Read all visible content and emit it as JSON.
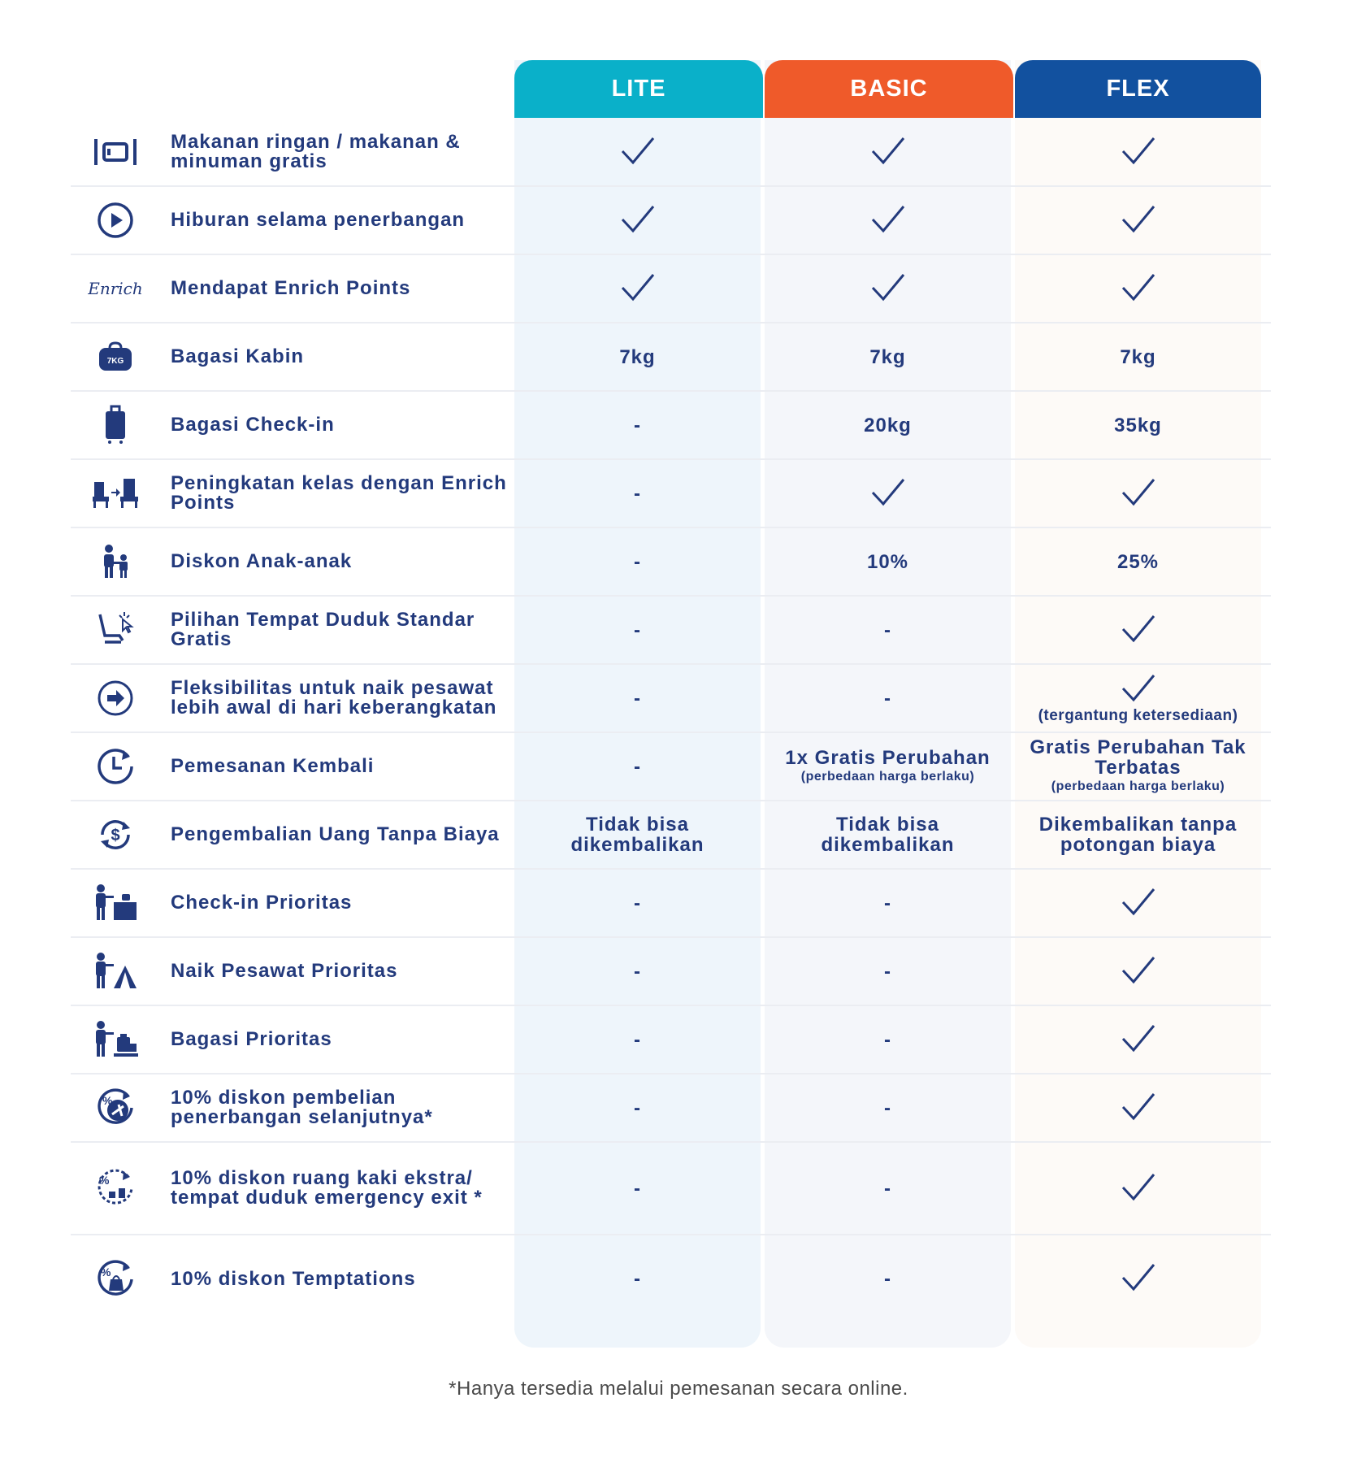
{
  "colors": {
    "lite": "#0ab0c9",
    "basic": "#ef5a2a",
    "flex": "#12519f",
    "text": "#233a7c",
    "lite_bg": "#eef5fb",
    "basic_bg": "#f4f6fa",
    "flex_bg": "#fdfaf7"
  },
  "plans": [
    {
      "label": "LITE",
      "accent": "#0ab0c9"
    },
    {
      "label": "BASIC",
      "accent": "#ef5a2a"
    },
    {
      "label": "FLEX",
      "accent": "#12519f"
    }
  ],
  "rows": [
    {
      "icon": "meal-icon",
      "label": "Makanan ringan / makanan & minuman gratis",
      "cells": [
        {
          "check": true
        },
        {
          "check": true
        },
        {
          "check": true
        }
      ]
    },
    {
      "icon": "play-icon",
      "label": "Hiburan selama penerbangan",
      "cells": [
        {
          "check": true
        },
        {
          "check": true
        },
        {
          "check": true
        }
      ]
    },
    {
      "icon": "enrich-logo-icon",
      "icon_text": "Enrich",
      "label": "Mendapat Enrich Points",
      "cells": [
        {
          "check": true
        },
        {
          "check": true
        },
        {
          "check": true
        }
      ]
    },
    {
      "icon": "cabin-bag-icon",
      "icon_text": "7KG",
      "label": "Bagasi Kabin",
      "cells": [
        {
          "text": "7kg"
        },
        {
          "text": "7kg"
        },
        {
          "text": "7kg"
        }
      ]
    },
    {
      "icon": "suitcase-icon",
      "label": "Bagasi Check-in",
      "cells": [
        {
          "text": "-"
        },
        {
          "text": "20kg"
        },
        {
          "text": "35kg"
        }
      ]
    },
    {
      "icon": "seat-upgrade-icon",
      "label": "Peningkatan kelas dengan Enrich Points",
      "cells": [
        {
          "text": "-"
        },
        {
          "check": true
        },
        {
          "check": true
        }
      ]
    },
    {
      "icon": "family-icon",
      "label": "Diskon Anak-anak",
      "cells": [
        {
          "text": "-"
        },
        {
          "text": "10%"
        },
        {
          "text": "25%"
        }
      ]
    },
    {
      "icon": "seat-select-icon",
      "label": "Pilihan Tempat Duduk Standar Gratis",
      "cells": [
        {
          "text": "-"
        },
        {
          "text": "-"
        },
        {
          "check": true
        }
      ]
    },
    {
      "icon": "arrow-circle-icon",
      "label": "Fleksibilitas untuk naik pesawat lebih awal di hari keberangkatan",
      "cells": [
        {
          "text": "-"
        },
        {
          "text": "-"
        },
        {
          "check": true,
          "note": "(tergantung ketersediaan)"
        }
      ]
    },
    {
      "icon": "clock-rebook-icon",
      "label": "Pemesanan Kembali",
      "cells": [
        {
          "text": "-"
        },
        {
          "text": "1x Gratis Perubahan",
          "sub": "(perbedaan harga berlaku)"
        },
        {
          "text": "Gratis Perubahan Tak Terbatas",
          "sub": "(perbedaan harga berlaku)"
        }
      ]
    },
    {
      "icon": "refund-icon",
      "label": "Pengembalian Uang Tanpa Biaya",
      "cells": [
        {
          "text": "Tidak bisa dikembalikan"
        },
        {
          "text": "Tidak bisa dikembalikan"
        },
        {
          "text": "Dikembalikan tanpa potongan biaya"
        }
      ]
    },
    {
      "icon": "priority-checkin-icon",
      "label": "Check-in Prioritas",
      "cells": [
        {
          "text": "-"
        },
        {
          "text": "-"
        },
        {
          "check": true
        }
      ]
    },
    {
      "icon": "priority-boarding-icon",
      "label": "Naik Pesawat Prioritas",
      "cells": [
        {
          "text": "-"
        },
        {
          "text": "-"
        },
        {
          "check": true
        }
      ]
    },
    {
      "icon": "priority-baggage-icon",
      "label": "Bagasi Prioritas",
      "cells": [
        {
          "text": "-"
        },
        {
          "text": "-"
        },
        {
          "check": true
        }
      ]
    },
    {
      "icon": "flight-discount-icon",
      "label": "10% diskon pembelian penerbangan selanjutnya*",
      "cells": [
        {
          "text": "-"
        },
        {
          "text": "-"
        },
        {
          "check": true
        }
      ]
    },
    {
      "icon": "legroom-discount-icon",
      "label": "10% diskon ruang kaki ekstra/ tempat duduk emergency exit *",
      "cells": [
        {
          "text": "-"
        },
        {
          "text": "-"
        },
        {
          "check": true
        }
      ]
    },
    {
      "icon": "temptations-discount-icon",
      "label": "10% diskon Temptations",
      "cells": [
        {
          "text": "-"
        },
        {
          "text": "-"
        },
        {
          "check": true
        }
      ]
    }
  ],
  "footnote": "*Hanya tersedia melalui pemesanan secara online."
}
